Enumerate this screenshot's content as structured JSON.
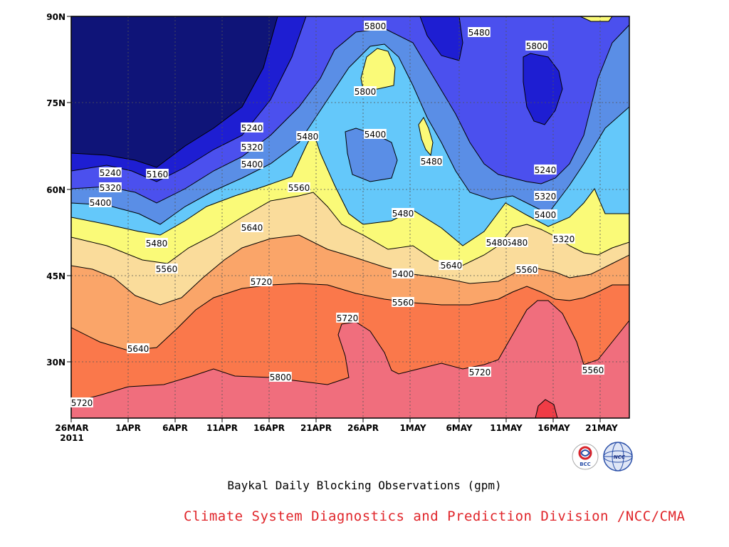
{
  "chart_data": {
    "type": "heatmap",
    "subtype": "filled contour (time-latitude Hovmoller)",
    "title": "Baykal Daily Blocking Observations (gpm)",
    "credit": "Climate System Diagnostics and Prediction Division /NCC/CMA",
    "year_label": "2011",
    "x_tick_labels": [
      "26MAR",
      "1APR",
      "6APR",
      "11APR",
      "16APR",
      "21APR",
      "26APR",
      "1MAY",
      "6MAY",
      "11MAY",
      "16MAY",
      "21MAY"
    ],
    "y_tick_labels": [
      "90N",
      "75N",
      "60N",
      "45N",
      "30N"
    ],
    "y_ticks": [
      90,
      75,
      60,
      45,
      30
    ],
    "ylim": [
      20,
      90
    ],
    "x_range_days": [
      0,
      60
    ],
    "contour_interval": 80,
    "contour_levels": [
      5160,
      5240,
      5320,
      5400,
      5480,
      5560,
      5640,
      5720,
      5800
    ],
    "grid": "dotted",
    "fill_colors": [
      {
        "max": 5160,
        "color": "#0f1478"
      },
      {
        "min": 5160,
        "max": 5240,
        "color": "#1e1ed2"
      },
      {
        "min": 5240,
        "max": 5320,
        "color": "#4b50ee"
      },
      {
        "min": 5320,
        "max": 5400,
        "color": "#5a8ee6"
      },
      {
        "min": 5400,
        "max": 5480,
        "color": "#64c8fa"
      },
      {
        "min": 5480,
        "max": 5560,
        "color": "#fafa78"
      },
      {
        "min": 5560,
        "max": 5640,
        "color": "#fadc9b"
      },
      {
        "min": 5640,
        "max": 5720,
        "color": "#faa569"
      },
      {
        "min": 5720,
        "max": 5800,
        "color": "#fa784b"
      },
      {
        "min": 5800,
        "max": 5880,
        "color": "#f06e7d"
      },
      {
        "min": 5880,
        "color": "#f03c46"
      }
    ],
    "contour_labels": [
      "5240",
      "5160",
      "5320",
      "5400",
      "5480",
      "5560",
      "5640",
      "5720",
      "5800",
      "5240",
      "5320",
      "5400",
      "5480",
      "5560",
      "5640",
      "5720",
      "5800",
      "5480",
      "5560",
      "5720",
      "5800",
      "5400",
      "5480",
      "5400",
      "5480",
      "5800",
      "5480",
      "5640",
      "5720",
      "5480",
      "5320",
      "5560",
      "5800",
      "5240",
      "5320",
      "5400",
      "5480",
      "5560",
      "5640",
      "5720",
      "5560",
      "5800"
    ]
  },
  "logos": {
    "left": "BCC",
    "right": "NCC"
  }
}
